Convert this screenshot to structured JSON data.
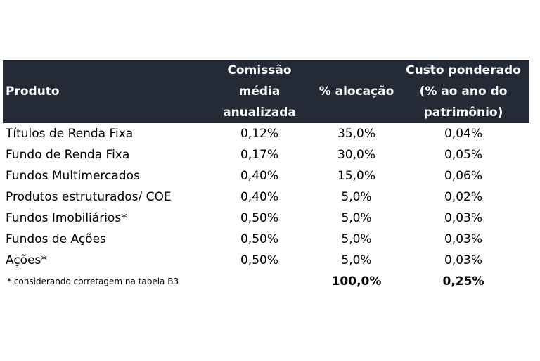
{
  "table": {
    "headers": {
      "produto": "Produto",
      "comissao": [
        "Comissão",
        "média",
        "anualizada"
      ],
      "alocacao": "% alocação",
      "custo": [
        "Custo ponderado",
        "(% ao ano do",
        "patrimônio)"
      ]
    },
    "rows": [
      {
        "produto": "Títulos de Renda Fixa",
        "comissao": "0,12%",
        "alocacao": "35,0%",
        "custo": "0,04%"
      },
      {
        "produto": "Fundo de Renda Fixa",
        "comissao": "0,17%",
        "alocacao": "30,0%",
        "custo": "0,05%"
      },
      {
        "produto": "Fundos Multimercados",
        "comissao": "0,40%",
        "alocacao": "15,0%",
        "custo": "0,06%"
      },
      {
        "produto": "Produtos estruturados/ COE",
        "comissao": "0,40%",
        "alocacao": "5,0%",
        "custo": "0,02%"
      },
      {
        "produto": "Fundos Imobiliários*",
        "comissao": "0,50%",
        "alocacao": "5,0%",
        "custo": "0,03%"
      },
      {
        "produto": "Fundos de Ações",
        "comissao": "0,50%",
        "alocacao": "5,0%",
        "custo": "0,03%"
      },
      {
        "produto": "Ações*",
        "comissao": "0,50%",
        "alocacao": "5,0%",
        "custo": "0,03%"
      }
    ],
    "footnote": "* considerando corretagem na tabela B3",
    "total_alocacao": "100,0%",
    "total_custo": "0,25%"
  },
  "colors": {
    "header_bg": "#252b36",
    "header_text": "#ffffff"
  }
}
